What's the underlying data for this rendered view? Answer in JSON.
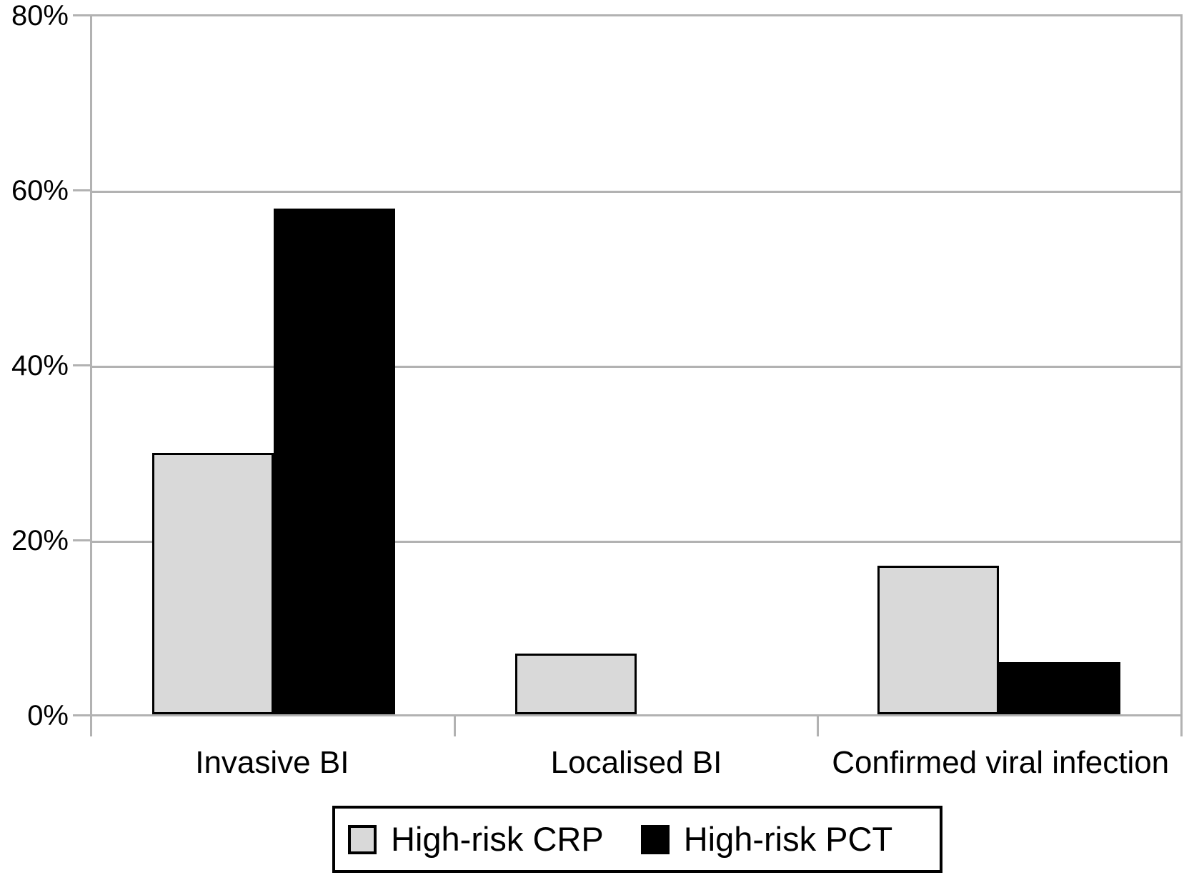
{
  "chart_data": {
    "type": "bar",
    "title": "",
    "categories": [
      "Invasive BI",
      "Localised BI",
      "Confirmed viral infection"
    ],
    "series": [
      {
        "name": "High-risk CRP",
        "color": "#d9d9d9",
        "values": [
          30,
          7,
          17
        ]
      },
      {
        "name": "High-risk PCT",
        "color": "#000000",
        "values": [
          58,
          0,
          6
        ]
      }
    ],
    "xlabel": "",
    "ylabel": "",
    "ylim": [
      0,
      80
    ],
    "yticks": [
      "0%",
      "20%",
      "40%",
      "60%",
      "80%"
    ],
    "ytick_values": [
      0,
      20,
      40,
      60,
      80
    ],
    "grid": true,
    "legend_position": "bottom-center",
    "styles": {
      "grid_color": "#b2b2b2",
      "bar_border_color": "#000000",
      "background": "#ffffff",
      "text_color": "#000000"
    }
  }
}
